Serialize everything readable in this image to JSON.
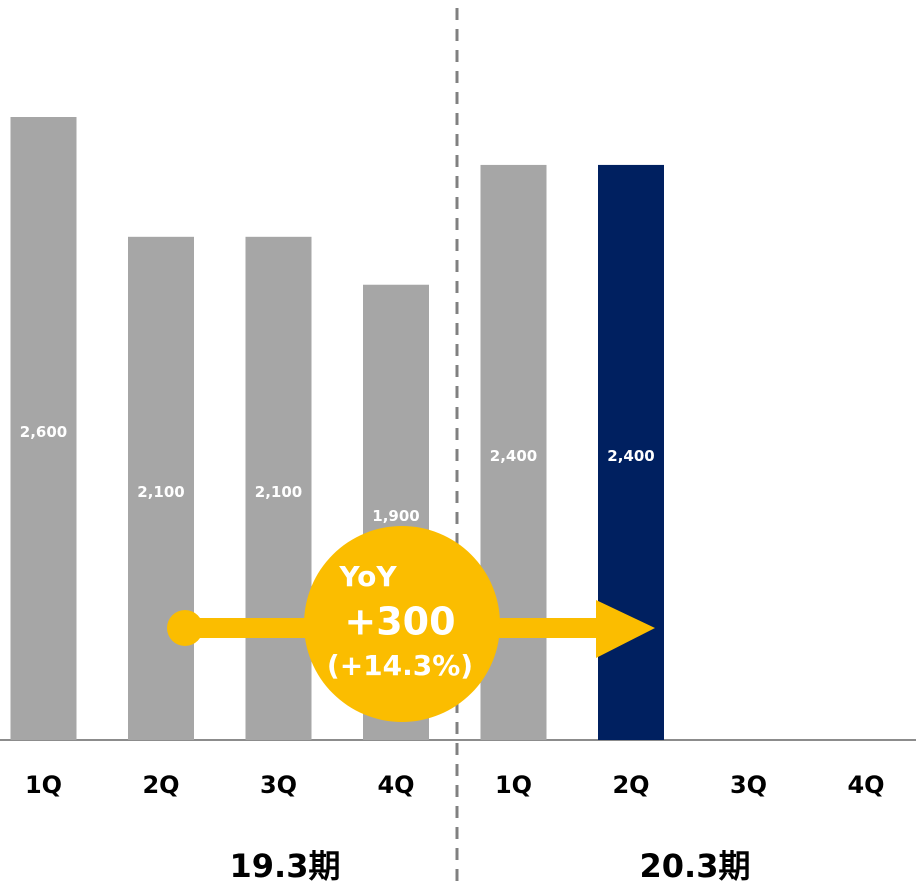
{
  "chart_data": {
    "type": "bar",
    "categories": [
      "1Q",
      "2Q",
      "3Q",
      "4Q",
      "1Q",
      "2Q",
      "3Q",
      "4Q"
    ],
    "values": [
      2600,
      2100,
      2100,
      1900,
      2400,
      2400,
      null,
      null
    ],
    "value_labels": [
      "2,600",
      "2,100",
      "2,100",
      "1,900",
      "2,400",
      "2,400",
      null,
      null
    ],
    "colors": [
      "#a6a6a6",
      "#a6a6a6",
      "#a6a6a6",
      "#a6a6a6",
      "#a6a6a6",
      "#002060",
      null,
      null
    ],
    "groups": [
      "19.3期",
      "20.3期"
    ],
    "annotation": [
      "YoY",
      "+300",
      "(+14.3%)"
    ],
    "annotation_color": "#fbbd00"
  }
}
